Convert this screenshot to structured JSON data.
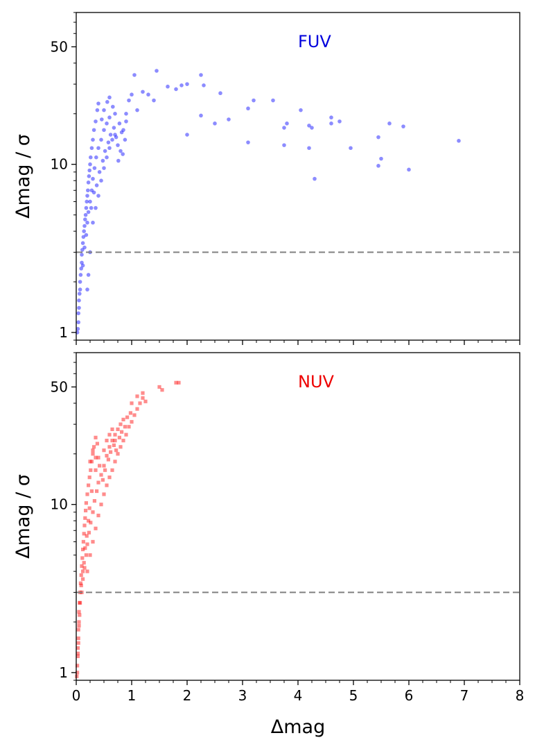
{
  "chart_data": [
    {
      "type": "scatter",
      "panel_label": "FUV",
      "label_color": "#0000dd",
      "marker": "circle",
      "marker_color": "#0000ff",
      "xlabel": "",
      "ylabel": "Δmag / σ",
      "xlim": [
        0,
        8
      ],
      "ylim": [
        0.9,
        80
      ],
      "yscale": "log",
      "y_ticks": [
        1,
        10,
        50
      ],
      "x_ticks": [
        0,
        1,
        2,
        3,
        4,
        5,
        6,
        7,
        8
      ],
      "show_x_tick_labels": false,
      "reference_line": {
        "y": 3,
        "style": "dashed",
        "color": "#808080"
      },
      "series": [
        {
          "points": [
            [
              0.02,
              1.0
            ],
            [
              0.03,
              1.05
            ],
            [
              0.04,
              1.15
            ],
            [
              0.04,
              1.3
            ],
            [
              0.05,
              1.4
            ],
            [
              0.05,
              1.55
            ],
            [
              0.06,
              1.7
            ],
            [
              0.07,
              1.8
            ],
            [
              0.07,
              2.0
            ],
            [
              0.08,
              2.2
            ],
            [
              0.09,
              2.4
            ],
            [
              0.1,
              2.6
            ],
            [
              0.1,
              2.9
            ],
            [
              0.11,
              3.1
            ],
            [
              0.12,
              3.4
            ],
            [
              0.13,
              3.7
            ],
            [
              0.14,
              4.0
            ],
            [
              0.15,
              4.3
            ],
            [
              0.16,
              4.7
            ],
            [
              0.17,
              5.0
            ],
            [
              0.18,
              5.5
            ],
            [
              0.19,
              6.0
            ],
            [
              0.2,
              6.5
            ],
            [
              0.21,
              7.0
            ],
            [
              0.22,
              7.8
            ],
            [
              0.23,
              8.5
            ],
            [
              0.24,
              9.2
            ],
            [
              0.25,
              10.0
            ],
            [
              0.26,
              11.0
            ],
            [
              0.28,
              12.5
            ],
            [
              0.3,
              14.0
            ],
            [
              0.32,
              16.0
            ],
            [
              0.35,
              18.0
            ],
            [
              0.38,
              21.0
            ],
            [
              0.4,
              23.0
            ],
            [
              0.12,
              2.5
            ],
            [
              0.15,
              3.2
            ],
            [
              0.18,
              3.8
            ],
            [
              0.2,
              4.5
            ],
            [
              0.22,
              5.2
            ],
            [
              0.25,
              6.0
            ],
            [
              0.28,
              7.0
            ],
            [
              0.3,
              8.2
            ],
            [
              0.33,
              9.5
            ],
            [
              0.36,
              11.0
            ],
            [
              0.4,
              12.5
            ],
            [
              0.45,
              14.0
            ],
            [
              0.5,
              16.0
            ],
            [
              0.55,
              17.5
            ],
            [
              0.6,
              19.0
            ],
            [
              0.3,
              4.5
            ],
            [
              0.35,
              5.5
            ],
            [
              0.4,
              6.5
            ],
            [
              0.45,
              8.0
            ],
            [
              0.5,
              9.5
            ],
            [
              0.55,
              11.0
            ],
            [
              0.6,
              12.5
            ],
            [
              0.65,
              14.0
            ],
            [
              0.7,
              15.0
            ],
            [
              0.75,
              13.0
            ],
            [
              0.8,
              12.0
            ],
            [
              0.85,
              16.0
            ],
            [
              0.9,
              20.0
            ],
            [
              0.95,
              24.0
            ],
            [
              1.0,
              26.0
            ],
            [
              1.1,
              21.0
            ],
            [
              1.2,
              27.0
            ],
            [
              1.3,
              26.0
            ],
            [
              1.45,
              36.0
            ],
            [
              1.05,
              34.0
            ],
            [
              1.4,
              24.0
            ],
            [
              1.65,
              29.0
            ],
            [
              1.8,
              28.0
            ],
            [
              1.9,
              29.5
            ],
            [
              2.0,
              30.0
            ],
            [
              2.25,
              34.0
            ],
            [
              2.3,
              29.5
            ],
            [
              2.6,
              26.5
            ],
            [
              3.2,
              24.0
            ],
            [
              3.55,
              24.0
            ],
            [
              4.05,
              21.0
            ],
            [
              4.2,
              17.0
            ],
            [
              4.25,
              16.5
            ],
            [
              4.6,
              19.0
            ],
            [
              4.75,
              18.0
            ],
            [
              3.1,
              21.5
            ],
            [
              2.25,
              19.5
            ],
            [
              2.5,
              17.5
            ],
            [
              2.75,
              18.5
            ],
            [
              2.0,
              15.0
            ],
            [
              3.75,
              16.5
            ],
            [
              3.8,
              17.5
            ],
            [
              3.1,
              13.5
            ],
            [
              3.75,
              13.0
            ],
            [
              4.2,
              12.5
            ],
            [
              4.3,
              8.2
            ],
            [
              4.6,
              17.5
            ],
            [
              4.95,
              12.5
            ],
            [
              5.45,
              14.5
            ],
            [
              5.5,
              10.8
            ],
            [
              5.45,
              9.8
            ],
            [
              5.65,
              17.5
            ],
            [
              5.9,
              16.8
            ],
            [
              6.0,
              9.3
            ],
            [
              6.9,
              13.8
            ],
            [
              0.2,
              1.8
            ],
            [
              0.25,
              3.0
            ],
            [
              0.22,
              2.2
            ],
            [
              0.27,
              5.5
            ],
            [
              0.32,
              6.8
            ],
            [
              0.37,
              7.5
            ],
            [
              0.42,
              9.0
            ],
            [
              0.48,
              10.5
            ],
            [
              0.52,
              12.0
            ],
            [
              0.58,
              13.5
            ],
            [
              0.62,
              15.0
            ],
            [
              0.68,
              16.5
            ],
            [
              0.72,
              14.5
            ],
            [
              0.78,
              17.5
            ],
            [
              0.82,
              15.5
            ],
            [
              0.46,
              18.5
            ],
            [
              0.5,
              21.0
            ],
            [
              0.56,
              23.5
            ],
            [
              0.6,
              25.0
            ],
            [
              0.66,
              22.0
            ],
            [
              0.7,
              20.0
            ],
            [
              0.9,
              18.0
            ],
            [
              0.88,
              14.0
            ],
            [
              0.84,
              11.5
            ],
            [
              0.76,
              10.5
            ]
          ]
        }
      ]
    },
    {
      "type": "scatter",
      "panel_label": "NUV",
      "label_color": "#ee0000",
      "marker": "square",
      "marker_color": "#ff0000",
      "xlabel": "Δmag",
      "ylabel": "Δmag / σ",
      "xlim": [
        0,
        8
      ],
      "ylim": [
        0.9,
        80
      ],
      "yscale": "log",
      "y_ticks": [
        1,
        10,
        50
      ],
      "x_ticks": [
        0,
        1,
        2,
        3,
        4,
        5,
        6,
        7,
        8
      ],
      "show_x_tick_labels": true,
      "reference_line": {
        "y": 3,
        "style": "dashed",
        "color": "#808080"
      },
      "series": [
        {
          "points": [
            [
              0.01,
              0.95
            ],
            [
              0.02,
              1.0
            ],
            [
              0.02,
              1.1
            ],
            [
              0.03,
              1.25
            ],
            [
              0.03,
              1.4
            ],
            [
              0.04,
              1.6
            ],
            [
              0.04,
              1.8
            ],
            [
              0.05,
              2.0
            ],
            [
              0.05,
              2.3
            ],
            [
              0.06,
              2.6
            ],
            [
              0.07,
              3.0
            ],
            [
              0.08,
              3.4
            ],
            [
              0.09,
              3.8
            ],
            [
              0.1,
              4.3
            ],
            [
              0.11,
              4.8
            ],
            [
              0.12,
              5.4
            ],
            [
              0.13,
              6.0
            ],
            [
              0.14,
              6.7
            ],
            [
              0.15,
              7.5
            ],
            [
              0.16,
              8.3
            ],
            [
              0.17,
              9.2
            ],
            [
              0.18,
              10.2
            ],
            [
              0.2,
              11.5
            ],
            [
              0.22,
              13.0
            ],
            [
              0.24,
              14.5
            ],
            [
              0.26,
              16.0
            ],
            [
              0.28,
              18.0
            ],
            [
              0.3,
              20.0
            ],
            [
              0.32,
              22.0
            ],
            [
              0.35,
              25.0
            ],
            [
              0.1,
              3.0
            ],
            [
              0.12,
              3.6
            ],
            [
              0.15,
              4.2
            ],
            [
              0.18,
              5.0
            ],
            [
              0.2,
              5.8
            ],
            [
              0.23,
              6.8
            ],
            [
              0.26,
              7.8
            ],
            [
              0.3,
              9.0
            ],
            [
              0.33,
              10.5
            ],
            [
              0.37,
              12.0
            ],
            [
              0.4,
              13.5
            ],
            [
              0.45,
              15.0
            ],
            [
              0.5,
              17.0
            ],
            [
              0.55,
              19.5
            ],
            [
              0.6,
              22.0
            ],
            [
              0.65,
              24.0
            ],
            [
              0.7,
              26.0
            ],
            [
              0.75,
              28.0
            ],
            [
              0.8,
              30.0
            ],
            [
              0.85,
              32.0
            ],
            [
              0.2,
              4.0
            ],
            [
              0.25,
              5.0
            ],
            [
              0.3,
              6.0
            ],
            [
              0.35,
              7.2
            ],
            [
              0.4,
              8.6
            ],
            [
              0.45,
              10.0
            ],
            [
              0.5,
              11.5
            ],
            [
              0.55,
              13.0
            ],
            [
              0.6,
              14.5
            ],
            [
              0.65,
              16.0
            ],
            [
              0.7,
              18.0
            ],
            [
              0.75,
              20.0
            ],
            [
              0.8,
              22.0
            ],
            [
              0.85,
              24.0
            ],
            [
              0.9,
              26.0
            ],
            [
              0.95,
              29.0
            ],
            [
              1.0,
              31.0
            ],
            [
              1.05,
              34.0
            ],
            [
              1.1,
              37.0
            ],
            [
              1.15,
              40.0
            ],
            [
              1.2,
              43.0
            ],
            [
              1.0,
              40.0
            ],
            [
              1.1,
              44.0
            ],
            [
              1.2,
              46.0
            ],
            [
              1.5,
              50.0
            ],
            [
              1.55,
              48.0
            ],
            [
              1.8,
              53.0
            ],
            [
              1.85,
              53.0
            ],
            [
              0.5,
              21.0
            ],
            [
              0.55,
              24.0
            ],
            [
              0.6,
              26.0
            ],
            [
              0.65,
              28.0
            ],
            [
              0.7,
              24.0
            ],
            [
              0.4,
              19.0
            ],
            [
              0.35,
              16.0
            ],
            [
              0.28,
              12.0
            ],
            [
              0.24,
              9.5
            ],
            [
              0.22,
              8.0
            ],
            [
              0.19,
              6.5
            ],
            [
              0.16,
              5.5
            ],
            [
              0.14,
              4.5
            ],
            [
              0.12,
              4.0
            ],
            [
              0.09,
              3.3
            ],
            [
              0.07,
              2.6
            ],
            [
              0.06,
              2.2
            ],
            [
              0.05,
              1.9
            ],
            [
              0.04,
              1.5
            ],
            [
              0.03,
              1.3
            ],
            [
              0.25,
              18.0
            ],
            [
              0.3,
              21.0
            ],
            [
              0.35,
              19.0
            ],
            [
              0.38,
              23.0
            ],
            [
              0.42,
              17.0
            ],
            [
              0.48,
              14.0
            ],
            [
              0.52,
              16.0
            ],
            [
              0.58,
              18.5
            ],
            [
              0.62,
              20.5
            ],
            [
              0.68,
              22.5
            ],
            [
              0.72,
              21.0
            ],
            [
              0.78,
              25.0
            ],
            [
              0.82,
              27.0
            ],
            [
              0.88,
              29.0
            ],
            [
              0.92,
              33.0
            ],
            [
              0.98,
              35.0
            ],
            [
              1.25,
              41.0
            ]
          ]
        }
      ]
    }
  ]
}
